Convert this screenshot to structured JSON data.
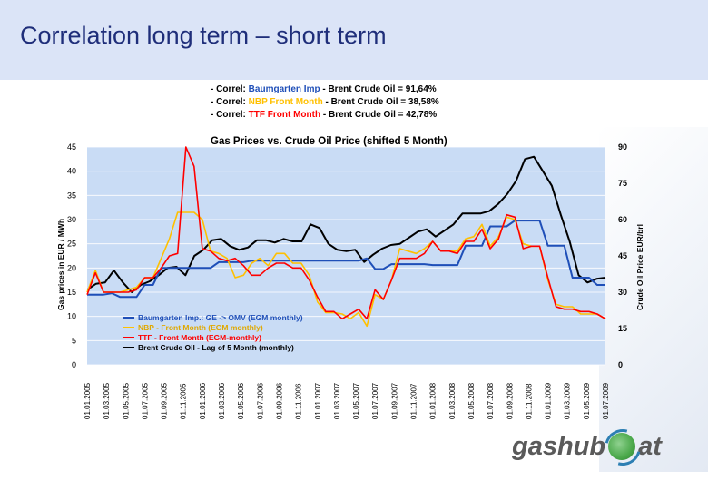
{
  "slide": {
    "title": "Correlation long term – short term",
    "logo_left": "gashub",
    "logo_right": "at"
  },
  "colors": {
    "header_bg": "#dbe4f7",
    "plot_bg": "#c9dcf5",
    "baumgarten": "#1f4fb8",
    "nbp": "#ffc000",
    "ttf": "#ff0000",
    "brent": "#000000"
  },
  "chart_data": {
    "type": "line",
    "title": "Gas Prices vs. Crude Oil Price (shifted 5 Month)",
    "correlations": [
      {
        "prefix": "- Correl: ",
        "name": "Baumgarten Imp",
        "suffix": " - Brent Crude Oil = 91,64%"
      },
      {
        "prefix": "- Correl: ",
        "name": "NBP Front Month",
        "suffix": " - Brent Crude Oil = 38,58%"
      },
      {
        "prefix": "- Correl: ",
        "name": "TTF Front Month",
        "suffix": " - Brent Crude Oil = 42,78%"
      }
    ],
    "ylabel_left": "Gas prices in EUR / MWh",
    "ylabel_right": "Crude Oil Price EUR/brl",
    "ylim_left": [
      0,
      45
    ],
    "ylim_right": [
      0,
      90
    ],
    "yticks_left": [
      "0",
      "5",
      "10",
      "15",
      "20",
      "25",
      "30",
      "35",
      "40",
      "45"
    ],
    "yticks_right": [
      "0",
      "15",
      "30",
      "45",
      "60",
      "75",
      "90"
    ],
    "xticks": [
      "01.01.2005",
      "01.03.2005",
      "01.05.2005",
      "01.07.2005",
      "01.09.2005",
      "01.11.2005",
      "01.01.2006",
      "01.03.2006",
      "01.05.2006",
      "01.07.2006",
      "01.09.2006",
      "01.11.2006",
      "01.01.2007",
      "01.03.2007",
      "01.05.2007",
      "01.07.2007",
      "01.09.2007",
      "01.11.2007",
      "01.01.2008",
      "01.03.2008",
      "01.05.2008",
      "01.07.2008",
      "01.09.2008",
      "01.11.2008",
      "01.01.2009",
      "01.03.2009",
      "01.05.2009",
      "01.07.2009"
    ],
    "legend_position": "bottom-left",
    "series": [
      {
        "name": "Baumgarten Imp.: GE -> OMV (EGM monthly)",
        "axis": "left",
        "values": [
          14.5,
          14.5,
          14.5,
          14.8,
          14.0,
          14.0,
          14.0,
          16.5,
          16.5,
          20.0,
          20.0,
          20.0,
          20.0,
          20.0,
          20.0,
          20.0,
          21.2,
          21.2,
          21.2,
          21.2,
          21.5,
          21.5,
          21.5,
          21.5,
          21.5,
          21.5,
          21.5,
          21.5,
          21.5,
          21.5,
          21.5,
          21.5,
          21.5,
          21.5,
          22.0,
          19.8,
          19.8,
          20.8,
          20.8,
          20.8,
          20.8,
          20.8,
          20.6,
          20.6,
          20.6,
          20.6,
          24.6,
          24.6,
          24.6,
          28.6,
          28.6,
          28.6,
          29.8,
          29.8,
          29.8,
          29.8,
          24.6,
          24.6,
          24.6,
          18.0,
          18.0,
          18.0,
          16.5,
          16.5
        ]
      },
      {
        "name": "NBP - Front Month (EGM monthly)",
        "axis": "left",
        "values": [
          15.0,
          19.5,
          15.0,
          15.0,
          15.0,
          15.5,
          16.0,
          18.0,
          18.0,
          22.0,
          26.0,
          31.5,
          31.5,
          31.5,
          30.0,
          23.5,
          23.0,
          22.0,
          18.0,
          18.5,
          21.0,
          22.0,
          20.5,
          23.0,
          23.0,
          21.0,
          21.0,
          18.5,
          13.0,
          10.8,
          10.8,
          10.5,
          9.5,
          10.8,
          8.0,
          14.5,
          13.5,
          17.5,
          24.0,
          23.5,
          23.0,
          24.0,
          25.5,
          23.5,
          23.5,
          23.5,
          26.0,
          26.5,
          29.0,
          24.5,
          26.5,
          30.5,
          30.0,
          25.0,
          24.5,
          24.5,
          17.5,
          12.5,
          12.0,
          12.0,
          10.5,
          10.5,
          10.5,
          9.5
        ]
      },
      {
        "name": "TTF - Front Month (EGM-monthly)",
        "axis": "left",
        "values": [
          14.5,
          19.0,
          15.0,
          15.0,
          15.0,
          15.0,
          15.5,
          18.0,
          18.0,
          20.0,
          22.5,
          23.0,
          45.0,
          41.0,
          24.0,
          23.5,
          22.0,
          21.5,
          22.0,
          20.5,
          18.5,
          18.5,
          20.0,
          21.0,
          21.0,
          20.0,
          20.0,
          17.5,
          14.0,
          11.0,
          11.0,
          9.5,
          10.5,
          11.5,
          9.5,
          15.5,
          13.5,
          17.5,
          22.0,
          22.0,
          22.0,
          23.0,
          25.5,
          23.5,
          23.5,
          23.0,
          25.5,
          25.5,
          28.0,
          24.0,
          26.0,
          31.0,
          30.5,
          24.0,
          24.5,
          24.5,
          18.0,
          12.0,
          11.5,
          11.5,
          11.0,
          11.0,
          10.5,
          9.5
        ]
      },
      {
        "name": "Brent Crude Oil - Lag of 5 Month (monthly)",
        "axis": "right",
        "values": [
          31.0,
          33.5,
          34.0,
          39.0,
          34.0,
          30.0,
          33.0,
          34.5,
          37.0,
          40.0,
          40.5,
          37.0,
          45.0,
          47.5,
          51.5,
          52.0,
          49.0,
          47.5,
          48.5,
          51.5,
          51.5,
          50.5,
          52.0,
          51.0,
          51.0,
          58.0,
          56.5,
          50.0,
          47.5,
          47.0,
          47.5,
          42.5,
          45.5,
          48.0,
          49.5,
          50.0,
          52.5,
          55.0,
          56.0,
          53.0,
          55.5,
          58.0,
          62.5,
          62.5,
          62.5,
          63.5,
          66.5,
          70.5,
          76.0,
          85.0,
          86.0,
          80.0,
          74.0,
          62.0,
          51.0,
          37.0,
          34.0,
          35.5,
          36.0
        ]
      }
    ]
  }
}
